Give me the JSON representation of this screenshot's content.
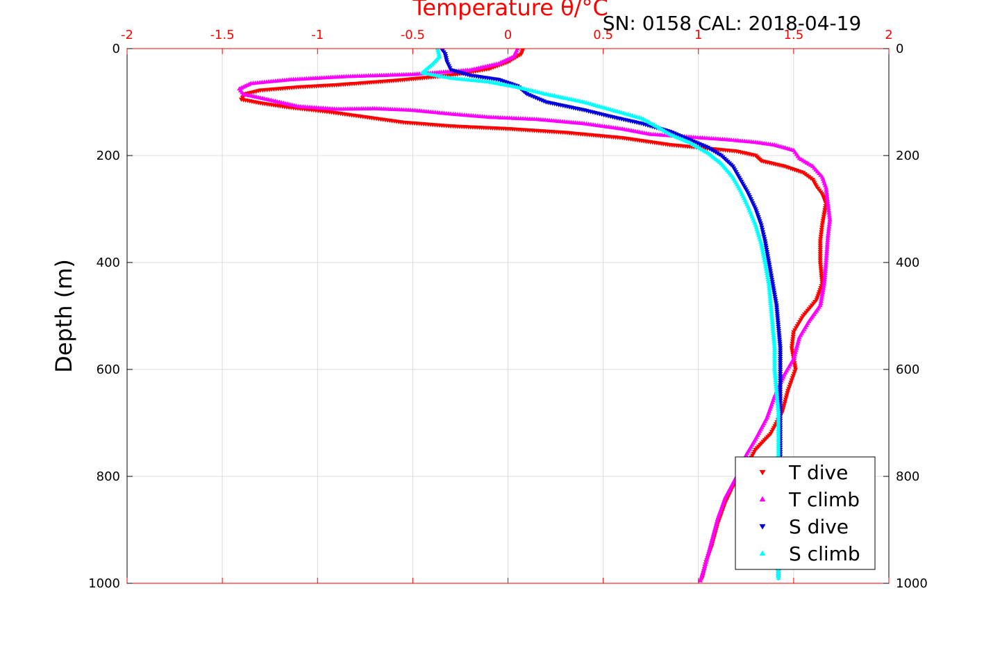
{
  "chart_data": {
    "type": "scatter",
    "title": "SN: 0158  CAL: 2018-04-19",
    "xlabel": "Temperature θ/°C",
    "ylabel": "Depth (m)",
    "xlim": [
      -2,
      2
    ],
    "ylim": [
      1000,
      0
    ],
    "x_ticks": [
      "-2",
      "-1.5",
      "-1",
      "-0.5",
      "0",
      "0.5",
      "1",
      "1.5",
      "2"
    ],
    "y_ticks": [
      "0",
      "200",
      "400",
      "600",
      "800",
      "1000"
    ],
    "grid": true,
    "legend_position": "bottom-right",
    "colors": {
      "axis": "#ff0000",
      "t_dive": "#ff0000",
      "t_climb": "#ff00ff",
      "s_dive": "#0000dd",
      "s_climb": "#00ffff"
    },
    "series": [
      {
        "name": "T dive",
        "marker": "triangle-down",
        "color": "#ff0000",
        "points": [
          [
            0.08,
            0
          ],
          [
            0.07,
            10
          ],
          [
            0.0,
            25
          ],
          [
            -0.1,
            38
          ],
          [
            -0.3,
            50
          ],
          [
            -0.6,
            60
          ],
          [
            -0.9,
            68
          ],
          [
            -1.1,
            72
          ],
          [
            -1.3,
            78
          ],
          [
            -1.38,
            85
          ],
          [
            -1.4,
            95
          ],
          [
            -1.3,
            102
          ],
          [
            -1.15,
            110
          ],
          [
            -0.95,
            118
          ],
          [
            -0.75,
            128
          ],
          [
            -0.55,
            138
          ],
          [
            -0.3,
            145
          ],
          [
            0.0,
            150
          ],
          [
            0.3,
            157
          ],
          [
            0.6,
            167
          ],
          [
            0.85,
            180
          ],
          [
            1.0,
            185
          ],
          [
            1.2,
            192
          ],
          [
            1.3,
            200
          ],
          [
            1.33,
            210
          ],
          [
            1.45,
            220
          ],
          [
            1.55,
            232
          ],
          [
            1.6,
            245
          ],
          [
            1.62,
            258
          ],
          [
            1.65,
            272
          ],
          [
            1.67,
            290
          ],
          [
            1.66,
            310
          ],
          [
            1.65,
            330
          ],
          [
            1.64,
            360
          ],
          [
            1.64,
            400
          ],
          [
            1.65,
            440
          ],
          [
            1.62,
            470
          ],
          [
            1.55,
            500
          ],
          [
            1.5,
            530
          ],
          [
            1.49,
            560
          ],
          [
            1.51,
            600
          ],
          [
            1.47,
            640
          ],
          [
            1.44,
            680
          ],
          [
            1.38,
            720
          ],
          [
            1.3,
            750
          ],
          [
            1.24,
            790
          ],
          [
            1.18,
            820
          ],
          [
            1.14,
            850
          ],
          [
            1.1,
            890
          ],
          [
            1.07,
            930
          ],
          [
            1.04,
            960
          ],
          [
            1.02,
            990
          ]
        ]
      },
      {
        "name": "T climb",
        "marker": "triangle-up",
        "color": "#ff00ff",
        "points": [
          [
            0.05,
            0
          ],
          [
            0.03,
            15
          ],
          [
            -0.05,
            28
          ],
          [
            -0.2,
            40
          ],
          [
            -0.5,
            48
          ],
          [
            -0.85,
            52
          ],
          [
            -1.15,
            58
          ],
          [
            -1.35,
            65
          ],
          [
            -1.41,
            75
          ],
          [
            -1.39,
            85
          ],
          [
            -1.3,
            92
          ],
          [
            -1.2,
            100
          ],
          [
            -1.1,
            108
          ],
          [
            -0.9,
            113
          ],
          [
            -0.7,
            112
          ],
          [
            -0.5,
            115
          ],
          [
            -0.3,
            122
          ],
          [
            -0.1,
            128
          ],
          [
            0.15,
            132
          ],
          [
            0.4,
            140
          ],
          [
            0.6,
            150
          ],
          [
            0.75,
            160
          ],
          [
            0.95,
            165
          ],
          [
            1.15,
            170
          ],
          [
            1.3,
            175
          ],
          [
            1.4,
            180
          ],
          [
            1.5,
            190
          ],
          [
            1.53,
            205
          ],
          [
            1.6,
            220
          ],
          [
            1.65,
            240
          ],
          [
            1.67,
            260
          ],
          [
            1.68,
            290
          ],
          [
            1.69,
            320
          ],
          [
            1.68,
            350
          ],
          [
            1.67,
            400
          ],
          [
            1.66,
            440
          ],
          [
            1.64,
            480
          ],
          [
            1.58,
            510
          ],
          [
            1.53,
            540
          ],
          [
            1.5,
            580
          ],
          [
            1.45,
            610
          ],
          [
            1.4,
            650
          ],
          [
            1.36,
            690
          ],
          [
            1.3,
            730
          ],
          [
            1.25,
            760
          ],
          [
            1.2,
            800
          ],
          [
            1.14,
            840
          ],
          [
            1.1,
            880
          ],
          [
            1.07,
            920
          ],
          [
            1.04,
            960
          ],
          [
            1.01,
            995
          ]
        ]
      },
      {
        "name": "S dive",
        "marker": "triangle-down",
        "color": "#0000dd",
        "points": [
          [
            -0.35,
            0
          ],
          [
            -0.33,
            10
          ],
          [
            -0.32,
            25
          ],
          [
            -0.3,
            40
          ],
          [
            -0.2,
            50
          ],
          [
            -0.05,
            58
          ],
          [
            0.05,
            70
          ],
          [
            0.1,
            85
          ],
          [
            0.2,
            100
          ],
          [
            0.4,
            115
          ],
          [
            0.55,
            128
          ],
          [
            0.7,
            140
          ],
          [
            0.85,
            155
          ],
          [
            0.95,
            170
          ],
          [
            1.05,
            185
          ],
          [
            1.12,
            200
          ],
          [
            1.18,
            220
          ],
          [
            1.22,
            245
          ],
          [
            1.26,
            270
          ],
          [
            1.3,
            300
          ],
          [
            1.33,
            330
          ],
          [
            1.35,
            360
          ],
          [
            1.37,
            400
          ],
          [
            1.39,
            440
          ],
          [
            1.41,
            480
          ],
          [
            1.42,
            520
          ],
          [
            1.43,
            560
          ],
          [
            1.43,
            600
          ],
          [
            1.43,
            650
          ],
          [
            1.43,
            700
          ],
          [
            1.43,
            750
          ],
          [
            1.43,
            800
          ],
          [
            1.42,
            850
          ],
          [
            1.42,
            900
          ],
          [
            1.42,
            950
          ],
          [
            1.42,
            990
          ]
        ]
      },
      {
        "name": "S climb",
        "marker": "triangle-up",
        "color": "#00ffff",
        "points": [
          [
            -0.37,
            0
          ],
          [
            -0.36,
            15
          ],
          [
            -0.4,
            30
          ],
          [
            -0.45,
            45
          ],
          [
            -0.3,
            55
          ],
          [
            -0.1,
            62
          ],
          [
            0.05,
            72
          ],
          [
            0.2,
            85
          ],
          [
            0.4,
            100
          ],
          [
            0.55,
            115
          ],
          [
            0.7,
            130
          ],
          [
            0.78,
            145
          ],
          [
            0.85,
            160
          ],
          [
            0.95,
            175
          ],
          [
            1.05,
            195
          ],
          [
            1.12,
            215
          ],
          [
            1.18,
            240
          ],
          [
            1.22,
            265
          ],
          [
            1.26,
            295
          ],
          [
            1.3,
            330
          ],
          [
            1.33,
            365
          ],
          [
            1.35,
            400
          ],
          [
            1.37,
            440
          ],
          [
            1.38,
            480
          ],
          [
            1.39,
            520
          ],
          [
            1.4,
            560
          ],
          [
            1.4,
            600
          ],
          [
            1.41,
            640
          ],
          [
            1.42,
            680
          ],
          [
            1.42,
            720
          ],
          [
            1.42,
            760
          ],
          [
            1.42,
            800
          ],
          [
            1.42,
            850
          ],
          [
            1.42,
            900
          ],
          [
            1.42,
            950
          ],
          [
            1.42,
            990
          ]
        ]
      }
    ]
  }
}
